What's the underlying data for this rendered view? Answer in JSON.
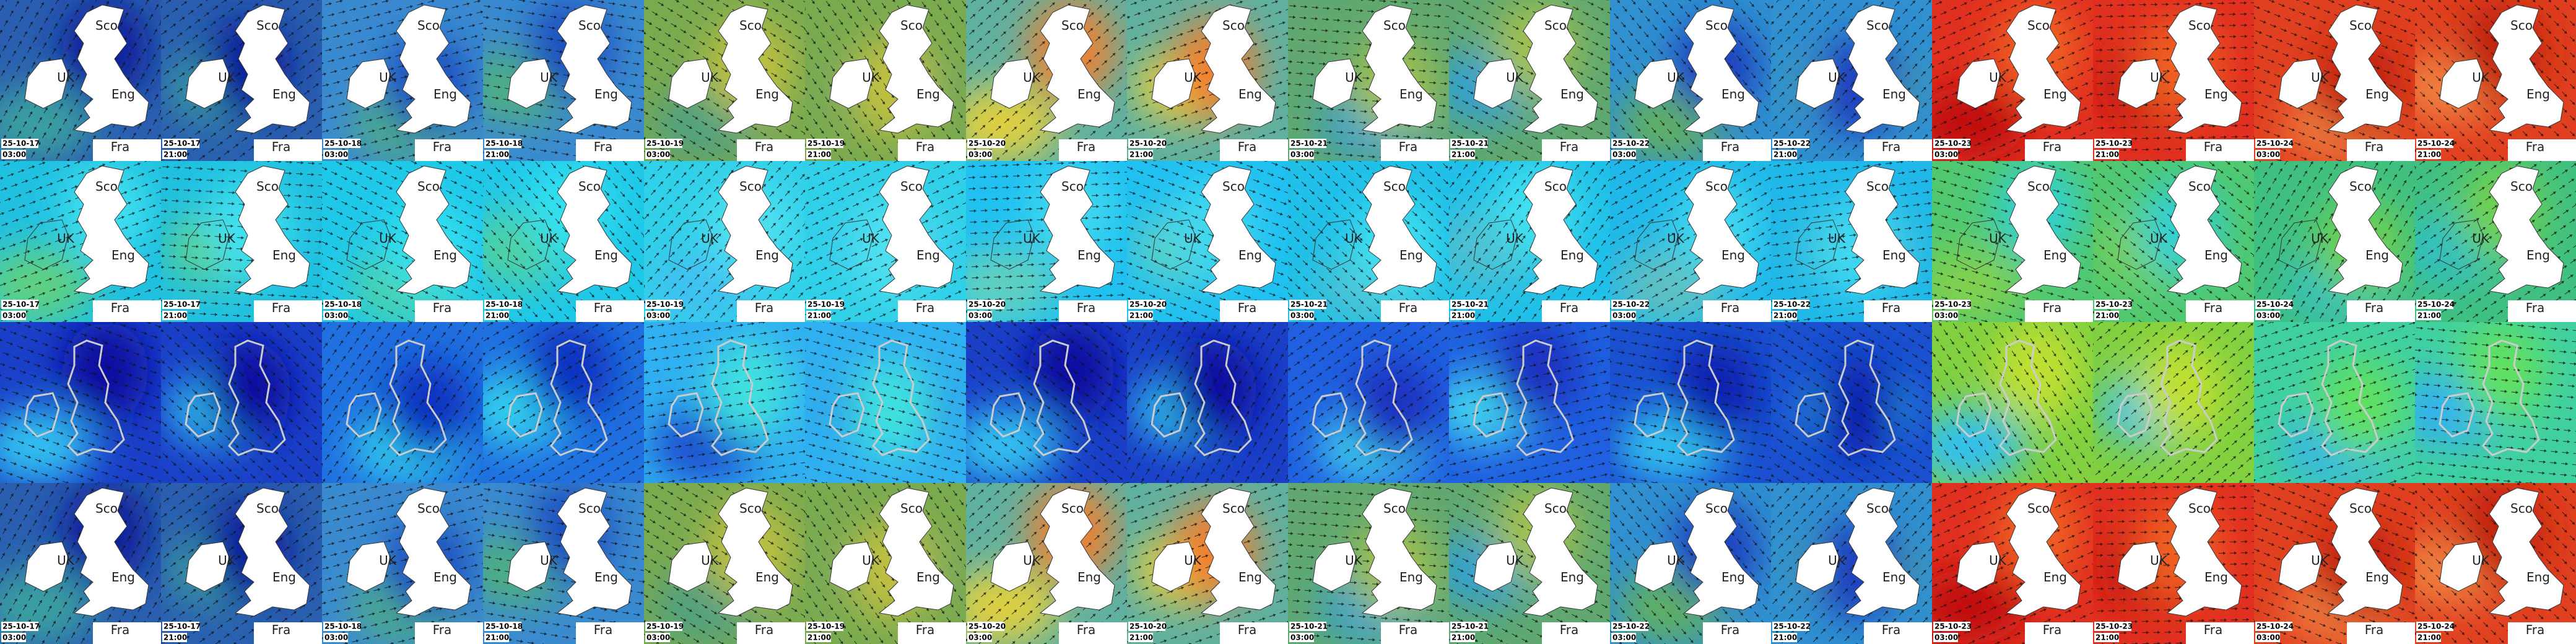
{
  "place_labels": [
    "Sco",
    "UK",
    "Eng",
    "Fra"
  ],
  "frames": [
    {
      "date": "25-10-17",
      "time": "03:00"
    },
    {
      "date": "25-10-17",
      "time": "21:00"
    },
    {
      "date": "25-10-18",
      "time": "03:00"
    },
    {
      "date": "25-10-18",
      "time": "21:00"
    },
    {
      "date": "25-10-19",
      "time": "03:00"
    },
    {
      "date": "25-10-19",
      "time": "21:00"
    },
    {
      "date": "25-10-20",
      "time": "03:00"
    },
    {
      "date": "25-10-20",
      "time": "21:00"
    },
    {
      "date": "25-10-21",
      "time": "03:00"
    },
    {
      "date": "25-10-21",
      "time": "21:00"
    },
    {
      "date": "25-10-22",
      "time": "03:00"
    },
    {
      "date": "25-10-22",
      "time": "21:00"
    },
    {
      "date": "25-10-23",
      "time": "03:00"
    },
    {
      "date": "25-10-23",
      "time": "21:00"
    },
    {
      "date": "25-10-24",
      "time": "03:00"
    },
    {
      "date": "25-10-24",
      "time": "21:00"
    }
  ]
}
